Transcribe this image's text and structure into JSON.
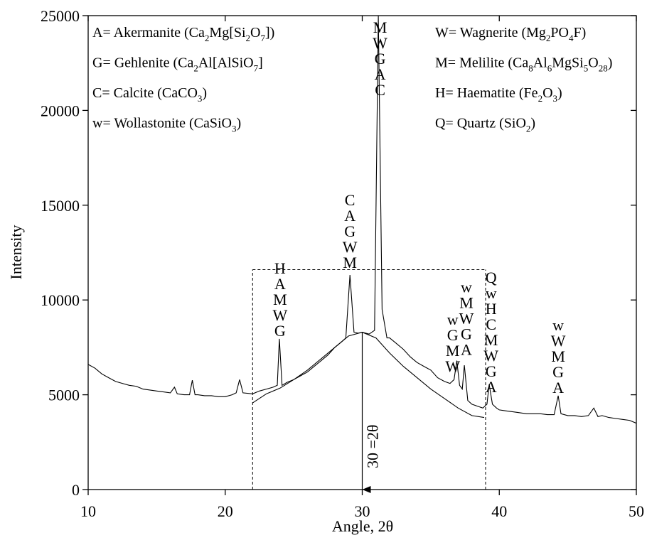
{
  "chart_data": {
    "type": "line",
    "x_label": "Angle, 2θ",
    "y_label": "Intensity",
    "xlim": [
      10,
      50
    ],
    "ylim": [
      0,
      25000
    ],
    "xticks": [
      10,
      20,
      30,
      40,
      50
    ],
    "yticks": [
      0,
      5000,
      10000,
      15000,
      20000,
      25000
    ],
    "series": [
      {
        "color": "#000000",
        "x": [
          10,
          10.5,
          11,
          11.5,
          12,
          12.5,
          13,
          13.5,
          14,
          14.5,
          15,
          15.5,
          16,
          16.3,
          16.5,
          17,
          17.4,
          17.6,
          17.8,
          18,
          18.5,
          19,
          19.5,
          20,
          20.5,
          20.8,
          21.05,
          21.3,
          22,
          22.5,
          23,
          23.5,
          23.8,
          23.95,
          24.15,
          24.5,
          25,
          25.5,
          26,
          26.5,
          27,
          27.5,
          28,
          28.5,
          28.8,
          29.1,
          29.4,
          29.7,
          30,
          30.5,
          30.9,
          31.17,
          31.45,
          31.8,
          32,
          32.5,
          33,
          33.5,
          34,
          34.5,
          35,
          35.5,
          36,
          36.4,
          36.7,
          36.9,
          37.1,
          37.3,
          37.45,
          37.7,
          38,
          38.4,
          38.8,
          39.1,
          39.26,
          39.5,
          39.8,
          40,
          40.5,
          41,
          41.5,
          42,
          42.5,
          43,
          43.5,
          44,
          44.3,
          44.5,
          45,
          45.5,
          46,
          46.5,
          46.9,
          47.2,
          47.5,
          48,
          48.5,
          49,
          49.5,
          50
        ],
        "values": [
          6600,
          6400,
          6100,
          5900,
          5700,
          5600,
          5500,
          5450,
          5300,
          5250,
          5200,
          5150,
          5100,
          5400,
          5050,
          5000,
          5000,
          5770,
          5000,
          5000,
          4950,
          4950,
          4900,
          4900,
          5000,
          5100,
          5800,
          5100,
          5050,
          5200,
          5300,
          5400,
          5500,
          7950,
          5500,
          5650,
          5800,
          6000,
          6200,
          6500,
          6800,
          7100,
          7500,
          7800,
          8000,
          11320,
          8300,
          8250,
          8300,
          8200,
          8400,
          25000,
          9500,
          8000,
          8000,
          7700,
          7400,
          7000,
          6700,
          6500,
          6300,
          5900,
          5700,
          5600,
          5800,
          6800,
          5500,
          5300,
          6560,
          4700,
          4500,
          4400,
          4300,
          4500,
          5550,
          4500,
          4300,
          4200,
          4150,
          4100,
          4050,
          4000,
          4000,
          4000,
          3950,
          3950,
          4950,
          4000,
          3900,
          3900,
          3850,
          3900,
          4300,
          3850,
          3900,
          3800,
          3750,
          3700,
          3650,
          3500
        ]
      },
      {
        "color": "#000000",
        "x": [
          22,
          23,
          24,
          25,
          26,
          27,
          28,
          29,
          30,
          31,
          32,
          33,
          34,
          35,
          36,
          37,
          38,
          38.9
        ],
        "values": [
          4570,
          5050,
          5350,
          5800,
          6300,
          6900,
          7500,
          8100,
          8300,
          8000,
          7200,
          6500,
          5900,
          5300,
          4800,
          4300,
          3900,
          3800
        ]
      }
    ],
    "annotations": [
      [
        "A= Akermanite (Ca",
        "2",
        "Mg[Si",
        "2",
        "O",
        "7",
        "])"
      ],
      [
        "G= Gehlenite (Ca",
        "2",
        "Al[AlSiO",
        "7",
        "]"
      ],
      [
        "C= Calcite (CaCO",
        "3",
        ")"
      ],
      [
        "w= Wollastonite (CaSiO",
        "3",
        ")"
      ],
      [
        "W= Wagnerite (Mg",
        "2",
        "PO",
        "4",
        "F)"
      ],
      [
        "M= Melilite (Ca",
        "8",
        "Al",
        "6",
        "MgSi",
        "5",
        "O",
        "28",
        ")"
      ],
      [
        "H= Haematite (Fe",
        "2",
        "O",
        "3",
        ")"
      ],
      [
        "Q= Quartz (SiO",
        "2",
        ")"
      ]
    ],
    "peak_labels": [
      {
        "x": 24.0,
        "y": 12000,
        "letters": [
          "H",
          "A",
          "M",
          "W",
          "G"
        ]
      },
      {
        "x": 29.1,
        "y": 15600,
        "letters": [
          "C",
          "A",
          "G",
          "W",
          "M"
        ]
      },
      {
        "x": 31.3,
        "y": 24700,
        "letters": [
          "M",
          "W",
          "G",
          "A",
          "C"
        ]
      },
      {
        "x": 36.6,
        "y": 9300,
        "letters": [
          "w",
          "G",
          "M",
          "W"
        ]
      },
      {
        "x": 37.6,
        "y": 11000,
        "letters": [
          "w",
          "M",
          "W",
          "G",
          "A"
        ]
      },
      {
        "x": 39.4,
        "y": 11500,
        "letters": [
          "Q",
          "w",
          "H",
          "C",
          "M",
          "W",
          "G",
          "A"
        ]
      },
      {
        "x": 44.3,
        "y": 9000,
        "letters": [
          "w",
          "W",
          "M",
          "G",
          "A"
        ]
      }
    ],
    "region": {
      "x": [
        22,
        39
      ],
      "y": 11600
    },
    "marker": {
      "x": 30,
      "y": 8300,
      "text": "30 =2θ"
    }
  }
}
